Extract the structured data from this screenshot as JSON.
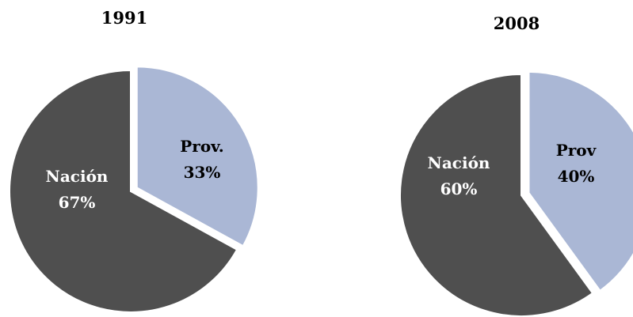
{
  "chart_data": [
    {
      "type": "pie",
      "title": "1991",
      "slices": [
        {
          "name": "Prov.",
          "value": 33,
          "label": "33%",
          "color": "#aab7d5"
        },
        {
          "name": "Nación",
          "value": 67,
          "label": "67%",
          "color": "#4f4f4f"
        }
      ]
    },
    {
      "type": "pie",
      "title": "2008",
      "slices": [
        {
          "name": "Prov",
          "value": 40,
          "label": "40%",
          "color": "#aab7d5"
        },
        {
          "name": "Nación",
          "value": 60,
          "label": "60%",
          "color": "#4f4f4f"
        }
      ]
    }
  ]
}
